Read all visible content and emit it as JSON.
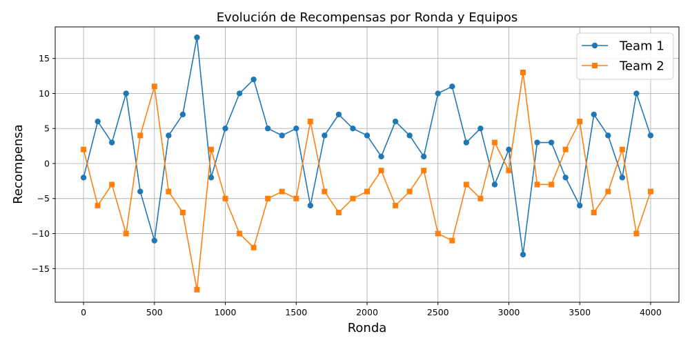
{
  "chart_data": {
    "type": "line",
    "title": "Evolución de Recompensas por Ronda y Equipos",
    "xlabel": "Ronda",
    "ylabel": "Recompensa",
    "x": [
      0,
      100,
      200,
      300,
      400,
      500,
      600,
      700,
      800,
      900,
      1000,
      1100,
      1200,
      1300,
      1400,
      1500,
      1600,
      1700,
      1800,
      1900,
      2000,
      2100,
      2200,
      2300,
      2400,
      2500,
      2600,
      2700,
      2800,
      2900,
      3000,
      3100,
      3200,
      3300,
      3400,
      3500,
      3600,
      3700,
      3800,
      3900,
      4000
    ],
    "xlim": [
      -200,
      4200
    ],
    "ylim": [
      -19.8,
      19.5
    ],
    "xticks": [
      0,
      500,
      1000,
      1500,
      2000,
      2500,
      3000,
      3500,
      4000
    ],
    "xtick_labels": [
      "0",
      "500",
      "1000",
      "1500",
      "2000",
      "2500",
      "3000",
      "3500",
      "4000"
    ],
    "yticks": [
      -15,
      -10,
      -5,
      0,
      5,
      10,
      15
    ],
    "ytick_labels": [
      "−15",
      "−10",
      "−5",
      "0",
      "5",
      "10",
      "15"
    ],
    "grid": true,
    "legend_position": "top-right",
    "series": [
      {
        "name": "Team 1",
        "color": "#1f77b4",
        "marker": "circle",
        "values": [
          -2,
          6,
          3,
          10,
          -4,
          -11,
          4,
          7,
          18,
          -2,
          5,
          10,
          12,
          5,
          4,
          5,
          -6,
          4,
          7,
          5,
          4,
          1,
          6,
          4,
          1,
          10,
          11,
          3,
          5,
          -3,
          2,
          -13,
          3,
          3,
          -2,
          -6,
          7,
          4,
          -2,
          10,
          4
        ]
      },
      {
        "name": "Team 2",
        "color": "#ff7f0e",
        "marker": "square",
        "values": [
          2,
          -6,
          -3,
          -10,
          4,
          11,
          -4,
          -7,
          -18,
          2,
          -5,
          -10,
          -12,
          -5,
          -4,
          -5,
          6,
          -4,
          -7,
          -5,
          -4,
          -1,
          -6,
          -4,
          -1,
          -10,
          -11,
          -3,
          -5,
          3,
          -1,
          13,
          -3,
          -3,
          2,
          6,
          -7,
          -4,
          2,
          -10,
          -4
        ]
      }
    ]
  }
}
